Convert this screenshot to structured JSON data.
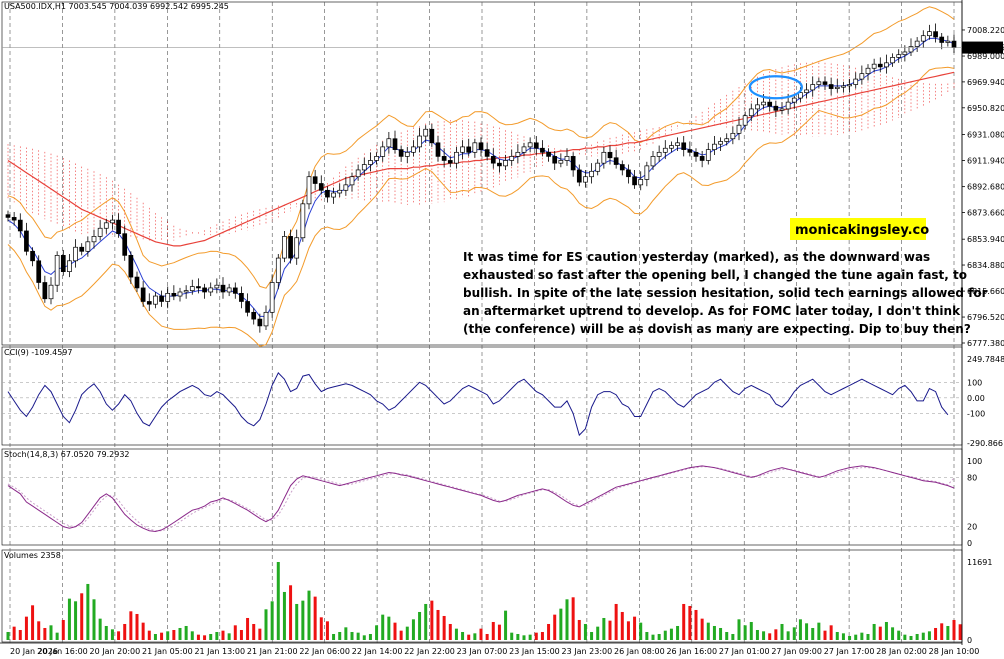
{
  "window": {
    "symbol_line": "USA500.IDX,H1  7003.545 7004.039 6992.542 6995.245"
  },
  "price_panel": {
    "current_price_label": "6995.245",
    "y_ticks": [
      "7008.220",
      "6989.000",
      "6969.940",
      "6950.820",
      "6931.080",
      "6911.940",
      "6892.680",
      "6873.660",
      "6853.940",
      "6834.880",
      "6815.660",
      "6796.520",
      "6777.380"
    ],
    "watermark": "monicakingsley.co",
    "commentary": [
      "It was time for ES caution yesterday (marked), as the downward was",
      "exhausted so fast after the opening bell, I changed the tune again fast, to",
      "bullish. In spite of the late session hesitation, solid tech earnings allowed for",
      "an aftermarket uptrend to develop. As for FOMC later today, I don't think",
      "(the conference) will be as dovish as many are expecting. Dip to buy then?"
    ]
  },
  "cci_panel": {
    "label": "CCI(9) -109.4597",
    "y_ticks": [
      "249.7848",
      "100",
      "0.00",
      "-100",
      "-290.866"
    ]
  },
  "stoch_panel": {
    "label": "Stoch(14,8,3) 67.0520 79.2932",
    "y_ticks": [
      "100",
      "80",
      "20",
      "0"
    ]
  },
  "volume_panel": {
    "label": "Volumes 2358",
    "y_ticks": [
      "11691",
      "0"
    ]
  },
  "time_axis": [
    "20 Jan 2026",
    "20 Jan 16:00",
    "20 Jan 20:00",
    "21 Jan 05:00",
    "21 Jan 13:00",
    "21 Jan 21:00",
    "22 Jan 06:00",
    "22 Jan 14:00",
    "22 Jan 22:00",
    "23 Jan 07:00",
    "23 Jan 15:00",
    "23 Jan 23:00",
    "26 Jan 08:00",
    "26 Jan 16:00",
    "27 Jan 01:00",
    "27 Jan 09:00",
    "27 Jan 17:00",
    "28 Jan 02:00",
    "28 Jan 10:00"
  ],
  "colors": {
    "bull": "#22aa22",
    "bear": "#ee1111",
    "cci": "#1a1a8c",
    "stoch": "#8b2a8b",
    "ma_slow": "#e8423a",
    "bollinger": "#f39b2b",
    "ma_fast": "#2a3fd4",
    "cloud": "#ee3333",
    "highlight": "#1e90ff"
  },
  "chart_data": {
    "type": "candlestick",
    "symbol": "USA500.IDX",
    "timeframe": "H1",
    "last_bar": {
      "open": 7003.545,
      "high": 7004.039,
      "low": 6992.542,
      "close": 6995.245
    },
    "ylim": [
      6777.38,
      7020
    ],
    "closes": [
      6870,
      6868,
      6860,
      6845,
      6838,
      6822,
      6810,
      6820,
      6842,
      6830,
      6838,
      6848,
      6845,
      6852,
      6856,
      6862,
      6866,
      6868,
      6858,
      6842,
      6826,
      6818,
      6808,
      6806,
      6812,
      6808,
      6814,
      6812,
      6815,
      6816,
      6819,
      6818,
      6815,
      6818,
      6820,
      6815,
      6818,
      6814,
      6808,
      6800,
      6795,
      6790,
      6800,
      6822,
      6840,
      6856,
      6840,
      6855,
      6880,
      6900,
      6895,
      6890,
      6885,
      6888,
      6890,
      6894,
      6900,
      6905,
      6909,
      6912,
      6915,
      6922,
      6928,
      6920,
      6915,
      6918,
      6922,
      6930,
      6935,
      6925,
      6915,
      6912,
      6910,
      6918,
      6922,
      6918,
      6925,
      6920,
      6915,
      6910,
      6908,
      6912,
      6915,
      6918,
      6922,
      6925,
      6921,
      6918,
      6915,
      6910,
      6912,
      6915,
      6905,
      6896,
      6900,
      6904,
      6910,
      6918,
      6914,
      6909,
      6905,
      6900,
      6894,
      6898,
      6908,
      6915,
      6918,
      6921,
      6923,
      6925,
      6920,
      6918,
      6915,
      6912,
      6920,
      6924,
      6926,
      6928,
      6932,
      6938,
      6945,
      6950,
      6953,
      6955,
      6952,
      6949,
      6950,
      6955,
      6958,
      6962,
      6964,
      6968,
      6970,
      6968,
      6965,
      6966,
      6967,
      6968,
      6972,
      6976,
      6980,
      6983,
      6981,
      6984,
      6988,
      6990,
      6992,
      6996,
      7000,
      7004,
      7007,
      7003,
      6999,
      7000,
      6995.245
    ],
    "ma_fast": [
      6868,
      6865,
      6860,
      6852,
      6846,
      6838,
      6830,
      6828,
      6832,
      6833,
      6835,
      6838,
      6840,
      6844,
      6848,
      6852,
      6856,
      6860,
      6858,
      6852,
      6843,
      6834,
      6824,
      6818,
      6815,
      6812,
      6812,
      6812,
      6813,
      6814,
      6815,
      6816,
      6816,
      6817,
      6817,
      6816,
      6816,
      6815,
      6812,
      6808,
      6803,
      6797,
      6797,
      6805,
      6818,
      6832,
      6838,
      6845,
      6858,
      6872,
      6882,
      6888,
      6890,
      6889,
      6889,
      6891,
      6895,
      6900,
      6904,
      6908,
      6912,
      6917,
      6922,
      6921,
      6919,
      6918,
      6919,
      6923,
      6927,
      6926,
      6922,
      6918,
      6914,
      6915,
      6917,
      6917,
      6920,
      6920,
      6919,
      6916,
      6913,
      6912,
      6913,
      6915,
      6918,
      6921,
      6921,
      6920,
      6918,
      6915,
      6913,
      6913,
      6910,
      6905,
      6903,
      6903,
      6906,
      6910,
      6912,
      6911,
      6908,
      6905,
      6900,
      6899,
      6902,
      6907,
      6911,
      6915,
      6918,
      6921,
      6921,
      6920,
      6918,
      6916,
      6917,
      6920,
      6922,
      6924,
      6928,
      6932,
      6938,
      6943,
      6948,
      6951,
      6952,
      6951,
      6951,
      6953,
      6955,
      6958,
      6961,
      6964,
      6967,
      6967,
      6967,
      6967,
      6967,
      6968,
      6970,
      6972,
      6975,
      6978,
      6979,
      6981,
      6984,
      6987,
      6989,
      6992,
      6995,
      6999,
      7002,
      7002,
      7001,
      7000,
      6998
    ],
    "ma_slow": [
      6912,
      6909,
      6906,
      6903,
      6900,
      6897,
      6894,
      6891,
      6888,
      6885,
      6882,
      6879,
      6876,
      6874,
      6872,
      6870,
      6868,
      6866,
      6864,
      6862,
      6860,
      6858,
      6856,
      6854,
      6852,
      6851,
      6850,
      6849,
      6849,
      6850,
      6851,
      6852,
      6853,
      6855,
      6857,
      6859,
      6861,
      6863,
      6865,
      6867,
      6869,
      6871,
      6873,
      6875,
      6877,
      6879,
      6881,
      6883,
      6885,
      6887,
      6889,
      6891,
      6893,
      6895,
      6897,
      6899,
      6900,
      6901,
      6902,
      6903,
      6904,
      6905,
      6906,
      6906,
      6906,
      6906,
      6907,
      6907,
      6908,
      6908,
      6909,
      6909,
      6910,
      6910,
      6911,
      6911,
      6912,
      6912,
      6913,
      6913,
      6914,
      6914,
      6915,
      6915,
      6916,
      6916,
      6917,
      6917,
      6918,
      6918,
      6919,
      6919,
      6920,
      6920,
      6921,
      6921,
      6922,
      6922,
      6923,
      6923,
      6924,
      6925,
      6925,
      6926,
      6927,
      6928,
      6929,
      6930,
      6931,
      6932,
      6933,
      6934,
      6935,
      6936,
      6937,
      6938,
      6939,
      6940,
      6941,
      6942,
      6943,
      6944,
      6945,
      6946,
      6947,
      6948,
      6949,
      6950,
      6951,
      6952,
      6953,
      6954,
      6955,
      6956,
      6957,
      6958,
      6959,
      6960,
      6961,
      6962,
      6963,
      6964,
      6965,
      6966,
      6967,
      6968,
      6969,
      6970,
      6971,
      6972,
      6973,
      6974,
      6975,
      6976,
      6977
    ],
    "cci_ylim": [
      -290.866,
      249.7848
    ],
    "cci": [
      40,
      -20,
      -80,
      -120,
      -60,
      20,
      80,
      40,
      -40,
      -120,
      -160,
      -80,
      20,
      60,
      90,
      40,
      -40,
      -80,
      -40,
      20,
      -20,
      -100,
      -160,
      -180,
      -120,
      -60,
      -20,
      10,
      40,
      60,
      80,
      60,
      20,
      10,
      40,
      20,
      -20,
      -60,
      -120,
      -160,
      -180,
      -140,
      -40,
      80,
      160,
      120,
      40,
      60,
      140,
      150,
      90,
      40,
      60,
      70,
      80,
      90,
      80,
      60,
      40,
      20,
      -20,
      -40,
      -80,
      -60,
      -20,
      20,
      60,
      100,
      80,
      40,
      0,
      -40,
      -20,
      20,
      60,
      80,
      60,
      40,
      20,
      -40,
      -20,
      20,
      60,
      100,
      120,
      80,
      40,
      20,
      -20,
      -60,
      -60,
      -20,
      -100,
      -240,
      -200,
      -60,
      20,
      40,
      40,
      20,
      -40,
      -60,
      -120,
      -120,
      -40,
      40,
      60,
      40,
      0,
      -40,
      -60,
      -20,
      20,
      40,
      60,
      100,
      120,
      80,
      40,
      20,
      60,
      80,
      60,
      40,
      20,
      -40,
      -60,
      -20,
      40,
      80,
      100,
      120,
      80,
      40,
      20,
      40,
      60,
      80,
      100,
      120,
      100,
      80,
      60,
      40,
      20,
      60,
      80,
      40,
      -20,
      -20,
      60,
      40,
      -60,
      -109.4597
    ],
    "stoch_ylim": [
      0,
      100
    ],
    "stoch_main": [
      70,
      65,
      60,
      50,
      45,
      40,
      35,
      30,
      25,
      20,
      18,
      20,
      25,
      35,
      45,
      55,
      60,
      55,
      45,
      35,
      28,
      22,
      18,
      15,
      14,
      16,
      20,
      25,
      30,
      35,
      40,
      42,
      45,
      50,
      52,
      55,
      52,
      48,
      44,
      40,
      35,
      30,
      26,
      30,
      40,
      55,
      70,
      78,
      82,
      80,
      78,
      76,
      74,
      72,
      70,
      72,
      74,
      76,
      78,
      80,
      82,
      84,
      86,
      85,
      83,
      82,
      80,
      78,
      76,
      74,
      72,
      70,
      68,
      66,
      64,
      62,
      60,
      58,
      55,
      52,
      50,
      52,
      55,
      58,
      60,
      62,
      64,
      66,
      64,
      60,
      55,
      50,
      46,
      44,
      48,
      52,
      56,
      60,
      64,
      68,
      70,
      72,
      74,
      76,
      78,
      80,
      82,
      84,
      86,
      88,
      90,
      92,
      93,
      94,
      93,
      92,
      90,
      88,
      86,
      84,
      82,
      80,
      82,
      85,
      88,
      90,
      92,
      90,
      88,
      86,
      84,
      82,
      80,
      82,
      85,
      88,
      90,
      92,
      93,
      94,
      93,
      92,
      90,
      88,
      86,
      84,
      82,
      80,
      78,
      76,
      75,
      74,
      72,
      70,
      67.052
    ],
    "stoch_signal": [
      72,
      68,
      63,
      55,
      49,
      44,
      39,
      34,
      29,
      24,
      21,
      20,
      22,
      30,
      40,
      50,
      57,
      58,
      52,
      42,
      34,
      27,
      21,
      17,
      15,
      15,
      17,
      21,
      26,
      31,
      36,
      40,
      43,
      47,
      50,
      53,
      53,
      50,
      46,
      42,
      38,
      33,
      28,
      28,
      34,
      46,
      61,
      72,
      79,
      81,
      80,
      78,
      76,
      74,
      72,
      71,
      72,
      74,
      76,
      78,
      80,
      82,
      84,
      85,
      84,
      83,
      81,
      79,
      77,
      75,
      73,
      71,
      69,
      67,
      65,
      63,
      61,
      59,
      57,
      54,
      51,
      51,
      53,
      56,
      59,
      61,
      63,
      65,
      65,
      62,
      58,
      53,
      48,
      45,
      46,
      50,
      54,
      58,
      62,
      66,
      69,
      71,
      73,
      75,
      77,
      79,
      81,
      83,
      85,
      87,
      89,
      91,
      92,
      93,
      93,
      92,
      91,
      89,
      87,
      85,
      83,
      81,
      81,
      83,
      86,
      88,
      90,
      90,
      89,
      87,
      85,
      83,
      81,
      81,
      83,
      86,
      88,
      90,
      91,
      92,
      92,
      91,
      90,
      88,
      86,
      84,
      82,
      81,
      79,
      77,
      76,
      75,
      73,
      71,
      79.2932
    ],
    "volume_ylim": [
      0,
      11691
    ],
    "volumes": [
      1200,
      2000,
      1500,
      3500,
      5200,
      2800,
      1800,
      2200,
      1100,
      3000,
      6200,
      5800,
      7000,
      8400,
      6100,
      3200,
      2100,
      1600,
      1300,
      2400,
      4300,
      3900,
      2600,
      1400,
      900,
      1100,
      1300,
      1500,
      1800,
      2100,
      1300,
      800,
      700,
      900,
      1200,
      1400,
      1000,
      2200,
      1500,
      3300,
      2400,
      1700,
      4600,
      5800,
      11691,
      7200,
      8200,
      5400,
      5900,
      7400,
      6500,
      3400,
      2800,
      900,
      1200,
      1900,
      1200,
      1100,
      700,
      900,
      2200,
      3800,
      3500,
      2600,
      1400,
      2000,
      3100,
      4200,
      5400,
      5900,
      4500,
      3600,
      2400,
      1700,
      1200,
      800,
      1000,
      1700,
      900,
      2700,
      2300,
      4400,
      1100,
      900,
      700,
      800,
      1100,
      1200,
      2400,
      3800,
      4700,
      6100,
      6400,
      3000,
      2400,
      1200,
      2000,
      3300,
      2900,
      5400,
      4200,
      2800,
      3500,
      2600,
      1200,
      800,
      900,
      1400,
      1700,
      2100,
      5400,
      5100,
      4500,
      3200,
      2600,
      2100,
      1800,
      1200,
      900,
      3100,
      2200,
      2700,
      1500,
      1300,
      1000,
      1600,
      2400,
      1300,
      1900,
      3100,
      2500,
      1800,
      2600,
      1400,
      2200,
      1200,
      1000,
      600,
      800,
      1100,
      900,
      2400,
      2000,
      2700,
      1900,
      1400,
      800,
      600,
      900,
      1100,
      1300,
      1800,
      2500,
      2100,
      3000,
      2358
    ],
    "marked_zone": "27 Jan 09:00 to 27 Jan 17:00"
  }
}
